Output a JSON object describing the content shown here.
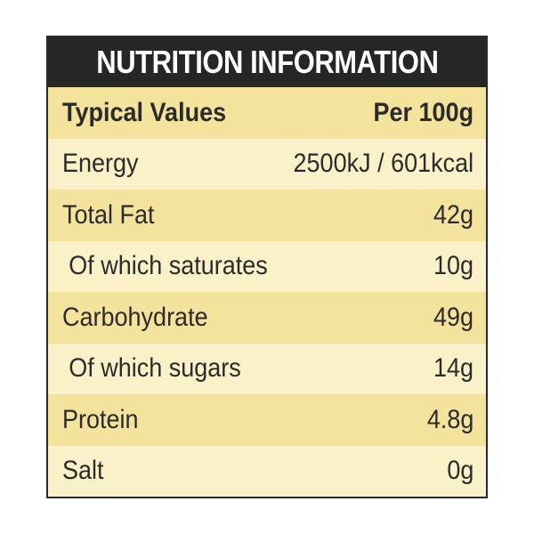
{
  "label": {
    "title": "NUTRITION INFORMATION",
    "header": {
      "label": "Typical Values",
      "value": "Per 100g"
    },
    "rows": [
      {
        "label": "Energy",
        "value": "2500kJ / 601kcal"
      },
      {
        "label": "Total Fat",
        "value": "42g"
      },
      {
        "label": "Of which saturates",
        "value": "10g"
      },
      {
        "label": "Carbohydrate",
        "value": "49g"
      },
      {
        "label": "Of which sugars",
        "value": "14g"
      },
      {
        "label": "Protein",
        "value": "4.8g"
      },
      {
        "label": "Salt",
        "value": "0g"
      }
    ]
  },
  "colors": {
    "title_bar": "#262626",
    "row_dark": "#f4e39c",
    "row_light": "#faf1c8",
    "text": "#2b2b2b"
  }
}
